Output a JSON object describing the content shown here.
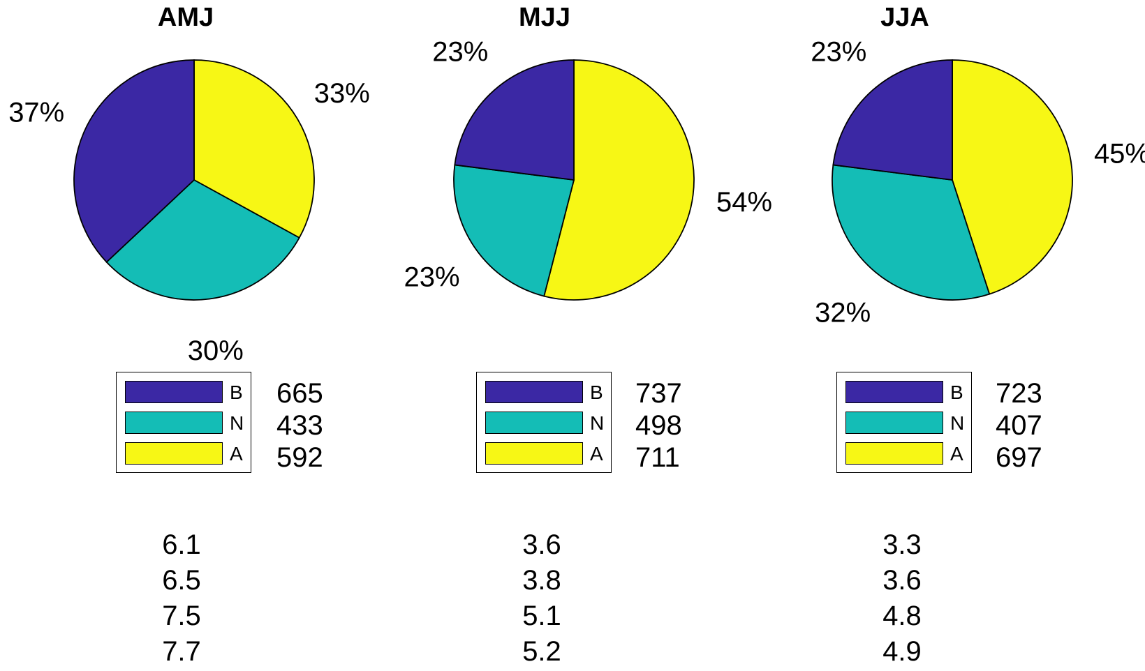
{
  "colors": {
    "B": "#3b28a4",
    "N": "#14bdb6",
    "A": "#f7f715",
    "edge": "#000000"
  },
  "chart_data": [
    {
      "type": "pie",
      "title": "AMJ",
      "slices": [
        {
          "label": "A",
          "percent": 33,
          "percent_label": "33%"
        },
        {
          "label": "N",
          "percent": 30,
          "percent_label": "30%"
        },
        {
          "label": "B",
          "percent": 37,
          "percent_label": "37%"
        }
      ],
      "legend": [
        {
          "label": "B",
          "count": "665"
        },
        {
          "label": "N",
          "count": "433"
        },
        {
          "label": "A",
          "count": "592"
        }
      ],
      "stats": [
        "6.1",
        "6.5",
        "7.5",
        "7.7"
      ]
    },
    {
      "type": "pie",
      "title": "MJJ",
      "slices": [
        {
          "label": "A",
          "percent": 54,
          "percent_label": "54%"
        },
        {
          "label": "N",
          "percent": 23,
          "percent_label": "23%"
        },
        {
          "label": "B",
          "percent": 23,
          "percent_label": "23%"
        }
      ],
      "legend": [
        {
          "label": "B",
          "count": "737"
        },
        {
          "label": "N",
          "count": "498"
        },
        {
          "label": "A",
          "count": "711"
        }
      ],
      "stats": [
        "3.6",
        "3.8",
        "5.1",
        "5.2"
      ]
    },
    {
      "type": "pie",
      "title": "JJA",
      "slices": [
        {
          "label": "A",
          "percent": 45,
          "percent_label": "45%"
        },
        {
          "label": "N",
          "percent": 32,
          "percent_label": "32%"
        },
        {
          "label": "B",
          "percent": 23,
          "percent_label": "23%"
        }
      ],
      "legend": [
        {
          "label": "B",
          "count": "723"
        },
        {
          "label": "N",
          "count": "407"
        },
        {
          "label": "A",
          "count": "697"
        }
      ],
      "stats": [
        "3.3",
        "3.6",
        "4.8",
        "4.9"
      ]
    }
  ]
}
